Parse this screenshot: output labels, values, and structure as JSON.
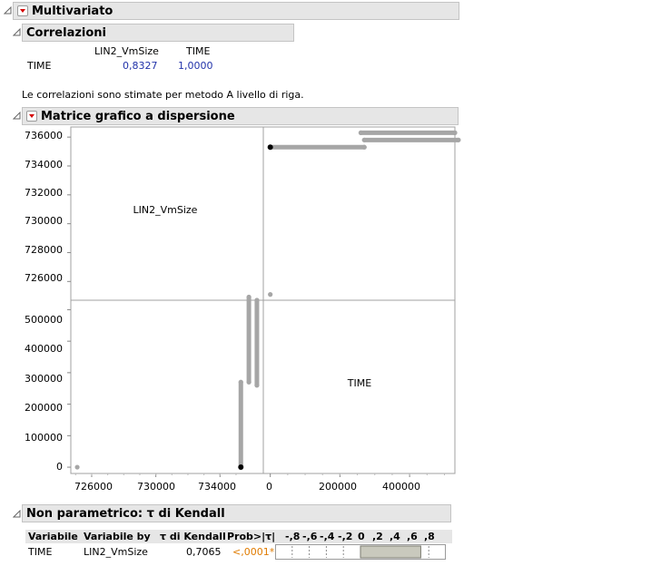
{
  "multivariate": {
    "title": "Multivariato"
  },
  "correlations": {
    "title": "Correlazioni",
    "columns": [
      "LIN2_VmSize",
      "TIME"
    ],
    "rows": [
      {
        "label": "TIME",
        "values": [
          "0,8327",
          "1,0000"
        ]
      }
    ],
    "note": "Le correlazioni sono stimate per metodo A livello di riga."
  },
  "scatter_matrix": {
    "title": "Matrice grafico a dispersione",
    "diag_labels": [
      "LIN2_VmSize",
      "TIME"
    ],
    "y_ticks_top": [
      "736000",
      "734000",
      "732000",
      "730000",
      "728000",
      "726000"
    ],
    "y_ticks_bottom": [
      "500000",
      "400000",
      "300000",
      "200000",
      "100000",
      "0"
    ],
    "x_ticks_left": [
      "726000",
      "730000",
      "734000"
    ],
    "x_ticks_right": [
      "0",
      "200000",
      "400000"
    ]
  },
  "chart_data": {
    "type": "scatter",
    "title": "Matrice grafico a dispersione",
    "variables": [
      "LIN2_VmSize",
      "TIME"
    ],
    "lin2_range": [
      724700,
      736700
    ],
    "time_range": [
      -20000,
      530000
    ],
    "points": [
      {
        "lin2": 725100,
        "time": 0
      },
      {
        "lin2": 735300,
        "time": 0
      },
      {
        "lin2": 735300,
        "time": 270000
      },
      {
        "lin2": 735800,
        "time": 270000
      },
      {
        "lin2": 735800,
        "time": 540000
      },
      {
        "lin2": 736300,
        "time": 260000
      },
      {
        "lin2": 736300,
        "time": 530000
      }
    ],
    "segments": [
      {
        "from": {
          "lin2": 735300,
          "time": 0
        },
        "to": {
          "lin2": 735300,
          "time": 270000
        }
      },
      {
        "from": {
          "lin2": 735800,
          "time": 270000
        },
        "to": {
          "lin2": 735800,
          "time": 540000
        }
      },
      {
        "from": {
          "lin2": 736300,
          "time": 260000
        },
        "to": {
          "lin2": 736300,
          "time": 530000
        }
      }
    ],
    "highlighted": {
      "lin2": 735300,
      "time": 0
    }
  },
  "kendall": {
    "title": "Non parametrico: τ di Kendall",
    "headers": [
      "Variabile",
      "Variabile by",
      "τ di Kendall",
      "Prob>|τ|"
    ],
    "bar_ticks": [
      "-,8",
      "-,6",
      "-,4",
      "-,2",
      "0",
      ",2",
      ",4",
      ",6",
      ",8"
    ],
    "row": {
      "variable": "TIME",
      "by": "LIN2_VmSize",
      "tau": "0,7065",
      "prob": "<,0001*"
    },
    "tau_value": 0.7065
  },
  "colors": {
    "accent_red": "#d40000",
    "point_gray": "#a6a6a6",
    "prob_orange": "#e07b00"
  }
}
